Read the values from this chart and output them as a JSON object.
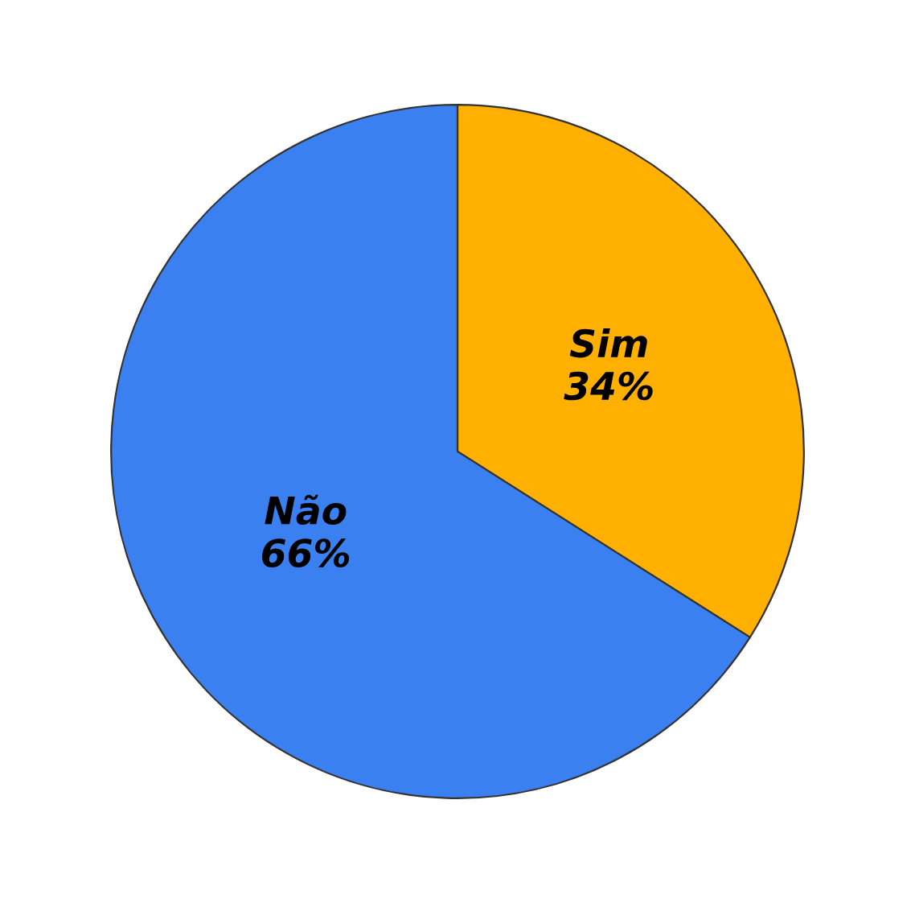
{
  "chart_data": {
    "type": "pie",
    "categories": [
      "Sim",
      "Não"
    ],
    "values": [
      34,
      66
    ],
    "value_labels": [
      "34%",
      "66%"
    ],
    "colors": [
      "#ffb000",
      "#3a80f0"
    ],
    "legend": false
  }
}
